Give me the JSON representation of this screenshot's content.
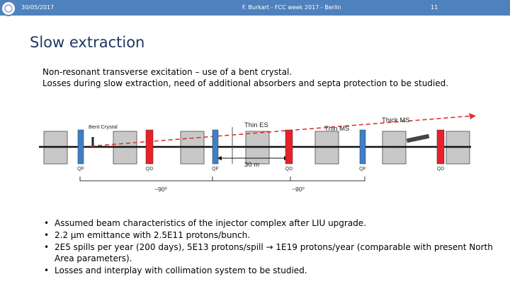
{
  "header": {
    "date": "30/05/2017",
    "author": "F. Burkart - FCC week 2017 - Berlin",
    "page": "11"
  },
  "title": "Slow extraction",
  "intro": [
    "Non-resonant transverse excitation – use of a bent crystal.",
    "Losses during slow extraction, need of additional absorbers and septa protection to be studied."
  ],
  "diagram": {
    "labels": [
      "Bent Crystal",
      "Thin ES",
      "Thin MS",
      "Thick MS",
      "30 m"
    ],
    "magnets": [
      "QF",
      "QD",
      "QF",
      "QD",
      "QF",
      "QD"
    ],
    "phase": [
      "~90⁰",
      "~90⁰"
    ]
  },
  "bullets": [
    "Assumed beam characteristics of the injector complex after LIU upgrade.",
    "2.2 μm emittance with 2.5E11 protons/bunch.",
    "2E5 spills per year (200 days), 5E13 protons/spill → 1E19 protons/year (comparable with present North Area parameters).",
    "Losses and interplay with collimation system to be studied."
  ]
}
